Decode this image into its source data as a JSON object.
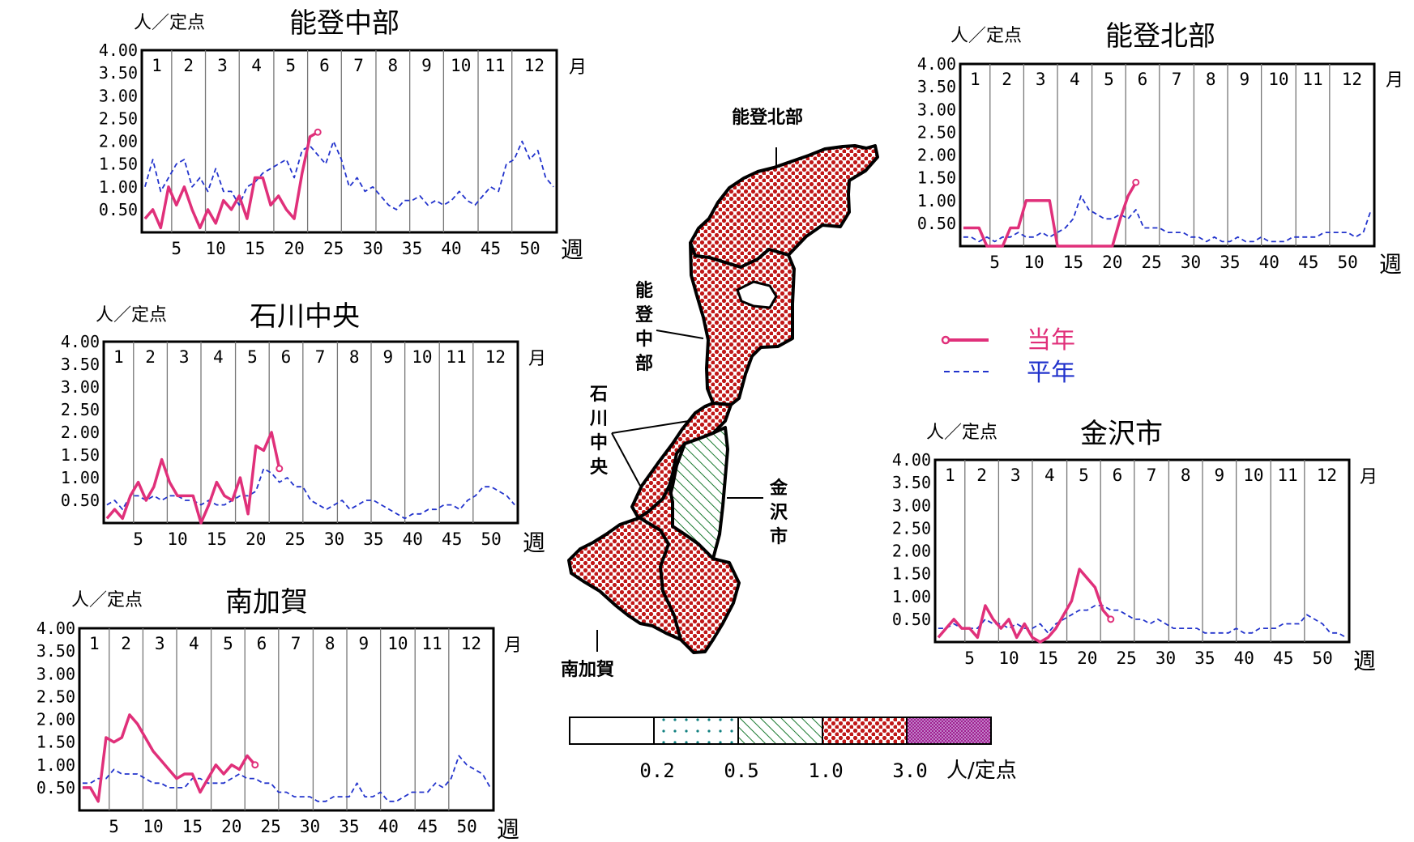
{
  "colors": {
    "current_year": "#e0307a",
    "normal_year": "#2233cc",
    "map_fill": "#c01818",
    "map_hatch": "#1a7a30",
    "scale_dots": "#108080",
    "scale_top": "#a02090"
  },
  "chart_data": [
    {
      "type": "line",
      "id": "noto-chubu",
      "title": "能登中部",
      "ylabel": "人／定点",
      "xlabel": "週",
      "month_label": "月",
      "ylim": [
        0,
        4
      ],
      "y_ticks": [
        "4.00",
        "3.50",
        "3.00",
        "2.50",
        "2.00",
        "1.50",
        "1.00",
        "0.50"
      ],
      "x_ticks": [
        "5",
        "10",
        "15",
        "20",
        "25",
        "30",
        "35",
        "40",
        "45",
        "50"
      ],
      "months": [
        "1",
        "2",
        "3",
        "4",
        "5",
        "6",
        "7",
        "8",
        "9",
        "10",
        "11",
        "12"
      ],
      "series": [
        {
          "name": "当年",
          "style": "solid",
          "x": [
            1,
            2,
            3,
            4,
            5,
            6,
            7,
            8,
            9,
            10,
            11,
            12,
            13,
            14,
            15,
            16,
            17,
            18,
            19,
            20,
            21,
            22,
            23
          ],
          "values": [
            0.3,
            0.5,
            0.1,
            1.0,
            0.6,
            1.0,
            0.5,
            0.1,
            0.5,
            0.2,
            0.7,
            0.5,
            0.8,
            0.3,
            1.2,
            1.2,
            0.6,
            0.8,
            0.5,
            0.3,
            1.3,
            2.1,
            2.2
          ]
        },
        {
          "name": "平年",
          "style": "dashed",
          "x": [
            1,
            2,
            3,
            4,
            5,
            6,
            7,
            8,
            9,
            10,
            11,
            12,
            13,
            14,
            15,
            16,
            17,
            18,
            19,
            20,
            21,
            22,
            23,
            24,
            25,
            26,
            27,
            28,
            29,
            30,
            31,
            32,
            33,
            34,
            35,
            36,
            37,
            38,
            39,
            40,
            41,
            42,
            43,
            44,
            45,
            46,
            47,
            48,
            49,
            50,
            51,
            52,
            53
          ],
          "values": [
            1.0,
            1.6,
            0.9,
            1.2,
            1.5,
            1.6,
            1.0,
            1.2,
            0.9,
            1.4,
            0.9,
            0.9,
            0.6,
            1.0,
            1.1,
            1.3,
            1.4,
            1.5,
            1.6,
            1.2,
            1.8,
            1.9,
            1.7,
            1.5,
            2.0,
            1.6,
            1.0,
            1.2,
            0.9,
            1.0,
            0.8,
            0.6,
            0.5,
            0.7,
            0.7,
            0.8,
            0.6,
            0.7,
            0.6,
            0.7,
            0.9,
            0.7,
            0.6,
            0.8,
            1.0,
            0.9,
            1.5,
            1.6,
            2.0,
            1.6,
            1.8,
            1.2,
            1.0
          ]
        }
      ]
    },
    {
      "type": "line",
      "id": "noto-hokubu",
      "title": "能登北部",
      "ylabel": "人／定点",
      "xlabel": "週",
      "month_label": "月",
      "ylim": [
        0,
        4
      ],
      "y_ticks": [
        "4.00",
        "3.50",
        "3.00",
        "2.50",
        "2.00",
        "1.50",
        "1.00",
        "0.50"
      ],
      "x_ticks": [
        "5",
        "10",
        "15",
        "20",
        "25",
        "30",
        "35",
        "40",
        "45",
        "50"
      ],
      "months": [
        "1",
        "2",
        "3",
        "4",
        "5",
        "6",
        "7",
        "8",
        "9",
        "10",
        "11",
        "12"
      ],
      "series": [
        {
          "name": "当年",
          "style": "solid",
          "x": [
            1,
            2,
            3,
            4,
            5,
            6,
            7,
            8,
            9,
            10,
            11,
            12,
            13,
            14,
            15,
            16,
            17,
            18,
            19,
            20,
            21,
            22,
            23
          ],
          "values": [
            0.4,
            0.4,
            0.4,
            0.0,
            0.0,
            0.0,
            0.4,
            0.4,
            1.0,
            1.0,
            1.0,
            1.0,
            0.0,
            0.0,
            0.0,
            0.0,
            0.0,
            0.0,
            0.0,
            0.0,
            0.6,
            1.1,
            1.4
          ]
        },
        {
          "name": "平年",
          "style": "dashed",
          "x": [
            1,
            2,
            3,
            4,
            5,
            6,
            7,
            8,
            9,
            10,
            11,
            12,
            13,
            14,
            15,
            16,
            17,
            18,
            19,
            20,
            21,
            22,
            23,
            24,
            25,
            26,
            27,
            28,
            29,
            30,
            31,
            32,
            33,
            34,
            35,
            36,
            37,
            38,
            39,
            40,
            41,
            42,
            43,
            44,
            45,
            46,
            47,
            48,
            49,
            50,
            51,
            52,
            53
          ],
          "values": [
            0.2,
            0.2,
            0.1,
            0.2,
            0.1,
            0.2,
            0.2,
            0.3,
            0.2,
            0.2,
            0.3,
            0.2,
            0.3,
            0.4,
            0.6,
            1.1,
            0.8,
            0.7,
            0.6,
            0.6,
            0.7,
            0.6,
            0.8,
            0.4,
            0.4,
            0.4,
            0.3,
            0.3,
            0.3,
            0.2,
            0.2,
            0.1,
            0.2,
            0.1,
            0.1,
            0.2,
            0.1,
            0.1,
            0.2,
            0.1,
            0.1,
            0.1,
            0.2,
            0.2,
            0.2,
            0.2,
            0.3,
            0.3,
            0.3,
            0.3,
            0.2,
            0.3,
            0.8
          ]
        }
      ]
    },
    {
      "type": "line",
      "id": "ishikawa-chuo",
      "title": "石川中央",
      "ylabel": "人／定点",
      "xlabel": "週",
      "month_label": "月",
      "ylim": [
        0,
        4
      ],
      "y_ticks": [
        "4.00",
        "3.50",
        "3.00",
        "2.50",
        "2.00",
        "1.50",
        "1.00",
        "0.50"
      ],
      "x_ticks": [
        "5",
        "10",
        "15",
        "20",
        "25",
        "30",
        "35",
        "40",
        "45",
        "50"
      ],
      "months": [
        "1",
        "2",
        "3",
        "4",
        "5",
        "6",
        "7",
        "8",
        "9",
        "10",
        "11",
        "12"
      ],
      "series": [
        {
          "name": "当年",
          "style": "solid",
          "x": [
            1,
            2,
            3,
            4,
            5,
            6,
            7,
            8,
            9,
            10,
            11,
            12,
            13,
            14,
            15,
            16,
            17,
            18,
            19,
            20,
            21,
            22,
            23
          ],
          "values": [
            0.1,
            0.3,
            0.1,
            0.6,
            0.9,
            0.5,
            0.8,
            1.4,
            0.9,
            0.6,
            0.6,
            0.6,
            0.0,
            0.4,
            0.9,
            0.6,
            0.5,
            1.0,
            0.2,
            1.7,
            1.6,
            2.0,
            1.2
          ]
        },
        {
          "name": "平年",
          "style": "dashed",
          "x": [
            1,
            2,
            3,
            4,
            5,
            6,
            7,
            8,
            9,
            10,
            11,
            12,
            13,
            14,
            15,
            16,
            17,
            18,
            19,
            20,
            21,
            22,
            23,
            24,
            25,
            26,
            27,
            28,
            29,
            30,
            31,
            32,
            33,
            34,
            35,
            36,
            37,
            38,
            39,
            40,
            41,
            42,
            43,
            44,
            45,
            46,
            47,
            48,
            49,
            50,
            51,
            52,
            53
          ],
          "values": [
            0.4,
            0.5,
            0.3,
            0.6,
            0.6,
            0.5,
            0.6,
            0.5,
            0.6,
            0.6,
            0.5,
            0.5,
            0.4,
            0.5,
            0.4,
            0.4,
            0.5,
            0.6,
            0.6,
            0.7,
            1.2,
            1.1,
            0.9,
            1.0,
            0.8,
            0.8,
            0.5,
            0.4,
            0.3,
            0.4,
            0.5,
            0.3,
            0.4,
            0.5,
            0.5,
            0.4,
            0.3,
            0.2,
            0.1,
            0.2,
            0.2,
            0.3,
            0.3,
            0.4,
            0.4,
            0.3,
            0.5,
            0.6,
            0.8,
            0.8,
            0.7,
            0.6,
            0.4
          ]
        }
      ]
    },
    {
      "type": "line",
      "id": "minami-kaga",
      "title": "南加賀",
      "ylabel": "人／定点",
      "xlabel": "週",
      "month_label": "月",
      "ylim": [
        0,
        4
      ],
      "y_ticks": [
        "4.00",
        "3.50",
        "3.00",
        "2.50",
        "2.00",
        "1.50",
        "1.00",
        "0.50"
      ],
      "x_ticks": [
        "5",
        "10",
        "15",
        "20",
        "25",
        "30",
        "35",
        "40",
        "45",
        "50"
      ],
      "months": [
        "1",
        "2",
        "3",
        "4",
        "5",
        "6",
        "7",
        "8",
        "9",
        "10",
        "11",
        "12"
      ],
      "series": [
        {
          "name": "当年",
          "style": "solid",
          "x": [
            1,
            2,
            3,
            4,
            5,
            6,
            7,
            8,
            9,
            10,
            11,
            12,
            13,
            14,
            15,
            16,
            17,
            18,
            19,
            20,
            21,
            22,
            23
          ],
          "values": [
            0.5,
            0.5,
            0.2,
            1.6,
            1.5,
            1.6,
            2.1,
            1.9,
            1.6,
            1.3,
            1.1,
            0.9,
            0.7,
            0.8,
            0.8,
            0.4,
            0.7,
            1.0,
            0.8,
            1.0,
            0.9,
            1.2,
            1.0
          ]
        },
        {
          "name": "平年",
          "style": "dashed",
          "x": [
            1,
            2,
            3,
            4,
            5,
            6,
            7,
            8,
            9,
            10,
            11,
            12,
            13,
            14,
            15,
            16,
            17,
            18,
            19,
            20,
            21,
            22,
            23,
            24,
            25,
            26,
            27,
            28,
            29,
            30,
            31,
            32,
            33,
            34,
            35,
            36,
            37,
            38,
            39,
            40,
            41,
            42,
            43,
            44,
            45,
            46,
            47,
            48,
            49,
            50,
            51,
            52,
            53
          ],
          "values": [
            0.6,
            0.6,
            0.7,
            0.7,
            0.9,
            0.8,
            0.8,
            0.8,
            0.7,
            0.6,
            0.6,
            0.5,
            0.5,
            0.5,
            0.7,
            0.7,
            0.6,
            0.6,
            0.6,
            0.7,
            0.8,
            0.7,
            0.7,
            0.6,
            0.6,
            0.4,
            0.4,
            0.3,
            0.3,
            0.3,
            0.2,
            0.2,
            0.3,
            0.3,
            0.3,
            0.6,
            0.3,
            0.3,
            0.4,
            0.2,
            0.2,
            0.3,
            0.4,
            0.4,
            0.4,
            0.6,
            0.5,
            0.7,
            1.2,
            1.0,
            0.9,
            0.8,
            0.5
          ]
        }
      ]
    },
    {
      "type": "line",
      "id": "kanazawa",
      "title": "金沢市",
      "ylabel": "人／定点",
      "xlabel": "週",
      "month_label": "月",
      "ylim": [
        0,
        4
      ],
      "y_ticks": [
        "4.00",
        "3.50",
        "3.00",
        "2.50",
        "2.00",
        "1.50",
        "1.00",
        "0.50"
      ],
      "x_ticks": [
        "5",
        "10",
        "15",
        "20",
        "25",
        "30",
        "35",
        "40",
        "45",
        "50"
      ],
      "months": [
        "1",
        "2",
        "3",
        "4",
        "5",
        "6",
        "7",
        "8",
        "9",
        "10",
        "11",
        "12"
      ],
      "series": [
        {
          "name": "当年",
          "style": "solid",
          "x": [
            1,
            2,
            3,
            4,
            5,
            6,
            7,
            8,
            9,
            10,
            11,
            12,
            13,
            14,
            15,
            16,
            17,
            18,
            19,
            20,
            21,
            22,
            23
          ],
          "values": [
            0.1,
            0.3,
            0.5,
            0.3,
            0.3,
            0.1,
            0.8,
            0.5,
            0.3,
            0.5,
            0.1,
            0.4,
            0.1,
            0.0,
            0.1,
            0.3,
            0.6,
            0.9,
            1.6,
            1.4,
            1.2,
            0.7,
            0.5
          ]
        },
        {
          "name": "平年",
          "style": "dashed",
          "x": [
            1,
            2,
            3,
            4,
            5,
            6,
            7,
            8,
            9,
            10,
            11,
            12,
            13,
            14,
            15,
            16,
            17,
            18,
            19,
            20,
            21,
            22,
            23,
            24,
            25,
            26,
            27,
            28,
            29,
            30,
            31,
            32,
            33,
            34,
            35,
            36,
            37,
            38,
            39,
            40,
            41,
            42,
            43,
            44,
            45,
            46,
            47,
            48,
            49,
            50,
            51,
            52,
            53
          ],
          "values": [
            0.3,
            0.3,
            0.4,
            0.3,
            0.3,
            0.3,
            0.5,
            0.4,
            0.4,
            0.3,
            0.4,
            0.3,
            0.3,
            0.4,
            0.2,
            0.4,
            0.5,
            0.6,
            0.7,
            0.7,
            0.8,
            0.8,
            0.7,
            0.7,
            0.6,
            0.5,
            0.5,
            0.4,
            0.5,
            0.4,
            0.3,
            0.3,
            0.3,
            0.3,
            0.2,
            0.2,
            0.2,
            0.2,
            0.3,
            0.2,
            0.2,
            0.3,
            0.3,
            0.3,
            0.4,
            0.4,
            0.4,
            0.6,
            0.5,
            0.4,
            0.2,
            0.2,
            0.1
          ]
        }
      ]
    }
  ],
  "legend": {
    "current": "当年",
    "normal": "平年"
  },
  "map": {
    "labels": {
      "noto_hokubu": "能登北部",
      "noto_chubu": [
        "能",
        "登",
        "中",
        "部"
      ],
      "ishikawa_chuo": [
        "石",
        "川",
        "中",
        "央"
      ],
      "kanazawa": [
        "金",
        "沢",
        "市"
      ],
      "minami_kaga": "南加賀"
    },
    "levels": {
      "noto_hokubu": "1.0-3.0",
      "noto_chubu": "1.0-3.0",
      "ishikawa_chuo": "1.0-3.0",
      "kanazawa": "0.5-1.0",
      "minami_kaga": "1.0-3.0"
    }
  },
  "scale": {
    "ticks": [
      "0.2",
      "0.5",
      "1.0",
      "3.0"
    ],
    "unit": "人/定点"
  }
}
